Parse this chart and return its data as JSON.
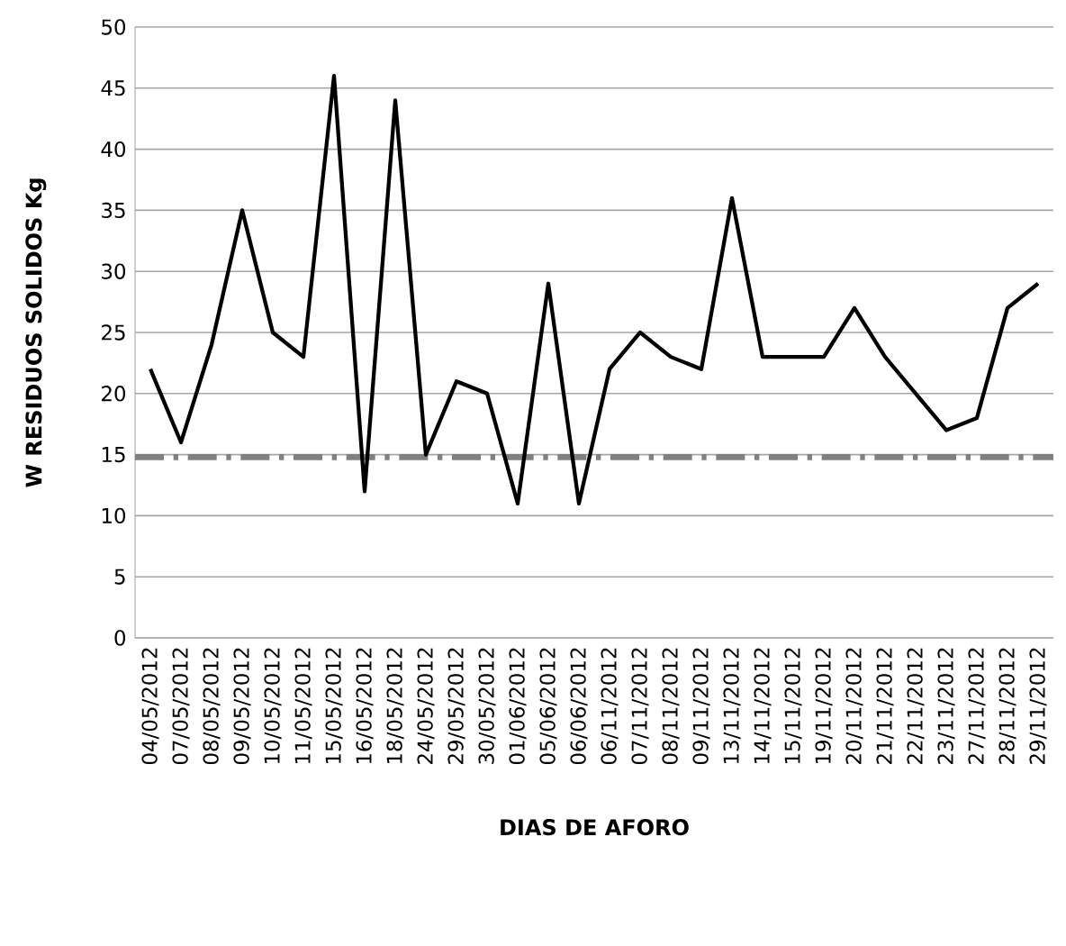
{
  "chart_data": {
    "type": "line",
    "xlabel": "DIAS DE AFORO",
    "ylabel": "W RESIDUOS SOLIDOS Kg",
    "categories": [
      "04/05/2012",
      "07/05/2012",
      "08/05/2012",
      "09/05/2012",
      "10/05/2012",
      "11/05/2012",
      "15/05/2012",
      "16/05/2012",
      "18/05/2012",
      "24/05/2012",
      "29/05/2012",
      "30/05/2012",
      "01/06/2012",
      "05/06/2012",
      "06/06/2012",
      "06/11/2012",
      "07/11/2012",
      "08/11/2012",
      "09/11/2012",
      "13/11/2012",
      "14/11/2012",
      "15/11/2012",
      "19/11/2012",
      "20/11/2012",
      "21/11/2012",
      "22/11/2012",
      "23/11/2012",
      "27/11/2012",
      "28/11/2012",
      "29/11/2012"
    ],
    "series": [
      {
        "color": "#000000",
        "values": [
          22,
          16,
          24,
          35,
          25,
          23,
          46,
          12,
          44,
          15,
          21,
          20,
          11,
          29,
          11,
          22,
          25,
          23,
          22,
          36,
          23,
          23,
          23,
          27,
          23,
          20,
          17,
          18,
          27,
          29
        ]
      }
    ],
    "ylim": [
      0,
      50
    ],
    "yticks": [
      0,
      5,
      10,
      15,
      20,
      25,
      30,
      35,
      40,
      45,
      50
    ],
    "grid": "y",
    "marker": "none",
    "line_style": "solid",
    "ref_lines": [
      {
        "axis": "y",
        "value": 14.8,
        "color": "#808080",
        "line_style": "dashed"
      }
    ]
  }
}
